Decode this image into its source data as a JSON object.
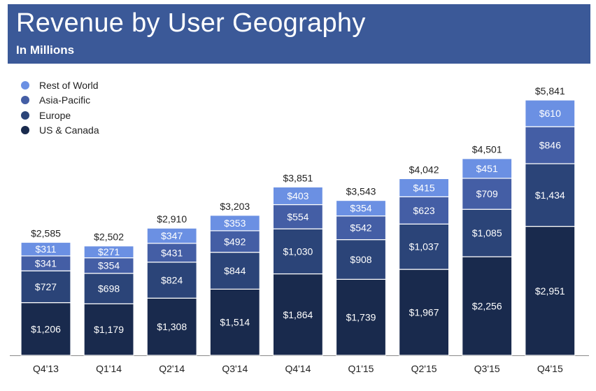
{
  "header": {
    "title": "Revenue by User Geography",
    "subtitle": "In Millions"
  },
  "colors": {
    "header_bg": "#3b5998",
    "us_canada": "#192a4d",
    "europe": "#2b4478",
    "asia_pacific": "#445ea5",
    "rest_of_world": "#6b90e3"
  },
  "legend": [
    {
      "label": "Rest of World",
      "color": "#6b90e3"
    },
    {
      "label": "Asia-Pacific",
      "color": "#445ea5"
    },
    {
      "label": "Europe",
      "color": "#2b4478"
    },
    {
      "label": "US & Canada",
      "color": "#192a4d"
    }
  ],
  "chart_data": {
    "type": "bar",
    "stacked": true,
    "title": "Revenue by User Geography",
    "subtitle": "In Millions",
    "categories": [
      "Q4'13",
      "Q1'14",
      "Q2'14",
      "Q3'14",
      "Q4'14",
      "Q1'15",
      "Q2'15",
      "Q3'15",
      "Q4'15"
    ],
    "series": [
      {
        "name": "US & Canada",
        "color": "#192a4d",
        "values": [
          1206,
          1179,
          1308,
          1514,
          1864,
          1739,
          1967,
          2256,
          2951
        ],
        "labels": [
          "$1,206",
          "$1,179",
          "$1,308",
          "$1,514",
          "$1,864",
          "$1,739",
          "$1,967",
          "$2,256",
          "$2,951"
        ]
      },
      {
        "name": "Europe",
        "color": "#2b4478",
        "values": [
          727,
          698,
          824,
          844,
          1030,
          908,
          1037,
          1085,
          1434
        ],
        "labels": [
          "$727",
          "$698",
          "$824",
          "$844",
          "$1,030",
          "$908",
          "$1,037",
          "$1,085",
          "$1,434"
        ]
      },
      {
        "name": "Asia-Pacific",
        "color": "#445ea5",
        "values": [
          341,
          354,
          431,
          492,
          554,
          542,
          623,
          709,
          846
        ],
        "labels": [
          "$341",
          "$354",
          "$431",
          "$492",
          "$554",
          "$542",
          "$623",
          "$709",
          "$846"
        ]
      },
      {
        "name": "Rest of World",
        "color": "#6b90e3",
        "values": [
          311,
          271,
          347,
          353,
          403,
          354,
          415,
          451,
          610
        ],
        "labels": [
          "$311",
          "$271",
          "$347",
          "$353",
          "$403",
          "$354",
          "$415",
          "$451",
          "$610"
        ]
      }
    ],
    "totals": [
      2585,
      2502,
      2910,
      3203,
      3851,
      3543,
      4042,
      4501,
      5841
    ],
    "total_labels": [
      "$2,585",
      "$2,502",
      "$2,910",
      "$3,203",
      "$3,851",
      "$3,543",
      "$4,042",
      "$4,501",
      "$5,841"
    ],
    "ylim": [
      0,
      5841
    ],
    "legend_position": "top-left",
    "grid": false
  }
}
